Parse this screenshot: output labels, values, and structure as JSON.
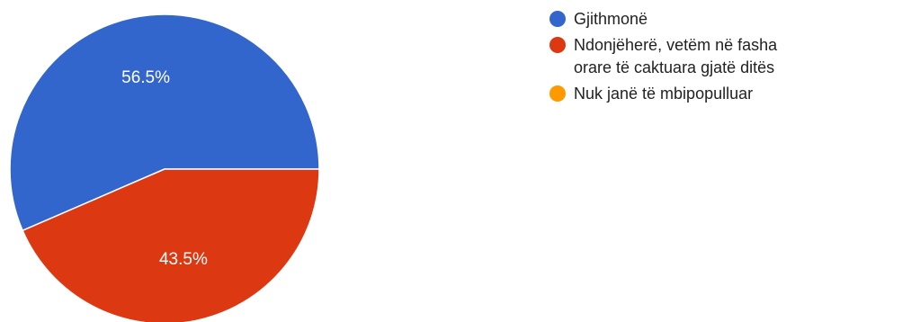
{
  "chart_data": {
    "type": "pie",
    "categories": [
      "Gjithmonë",
      "Ndonjëherë, vetëm në fasha orare të caktuara gjatë ditës",
      "Nuk janë të mbipopulluar"
    ],
    "values": [
      56.5,
      43.5,
      0
    ],
    "value_labels": [
      "56.5%",
      "43.5%",
      ""
    ],
    "colors": [
      "#3366cc",
      "#dc3912",
      "#ff9900"
    ],
    "legend_position": "right"
  }
}
